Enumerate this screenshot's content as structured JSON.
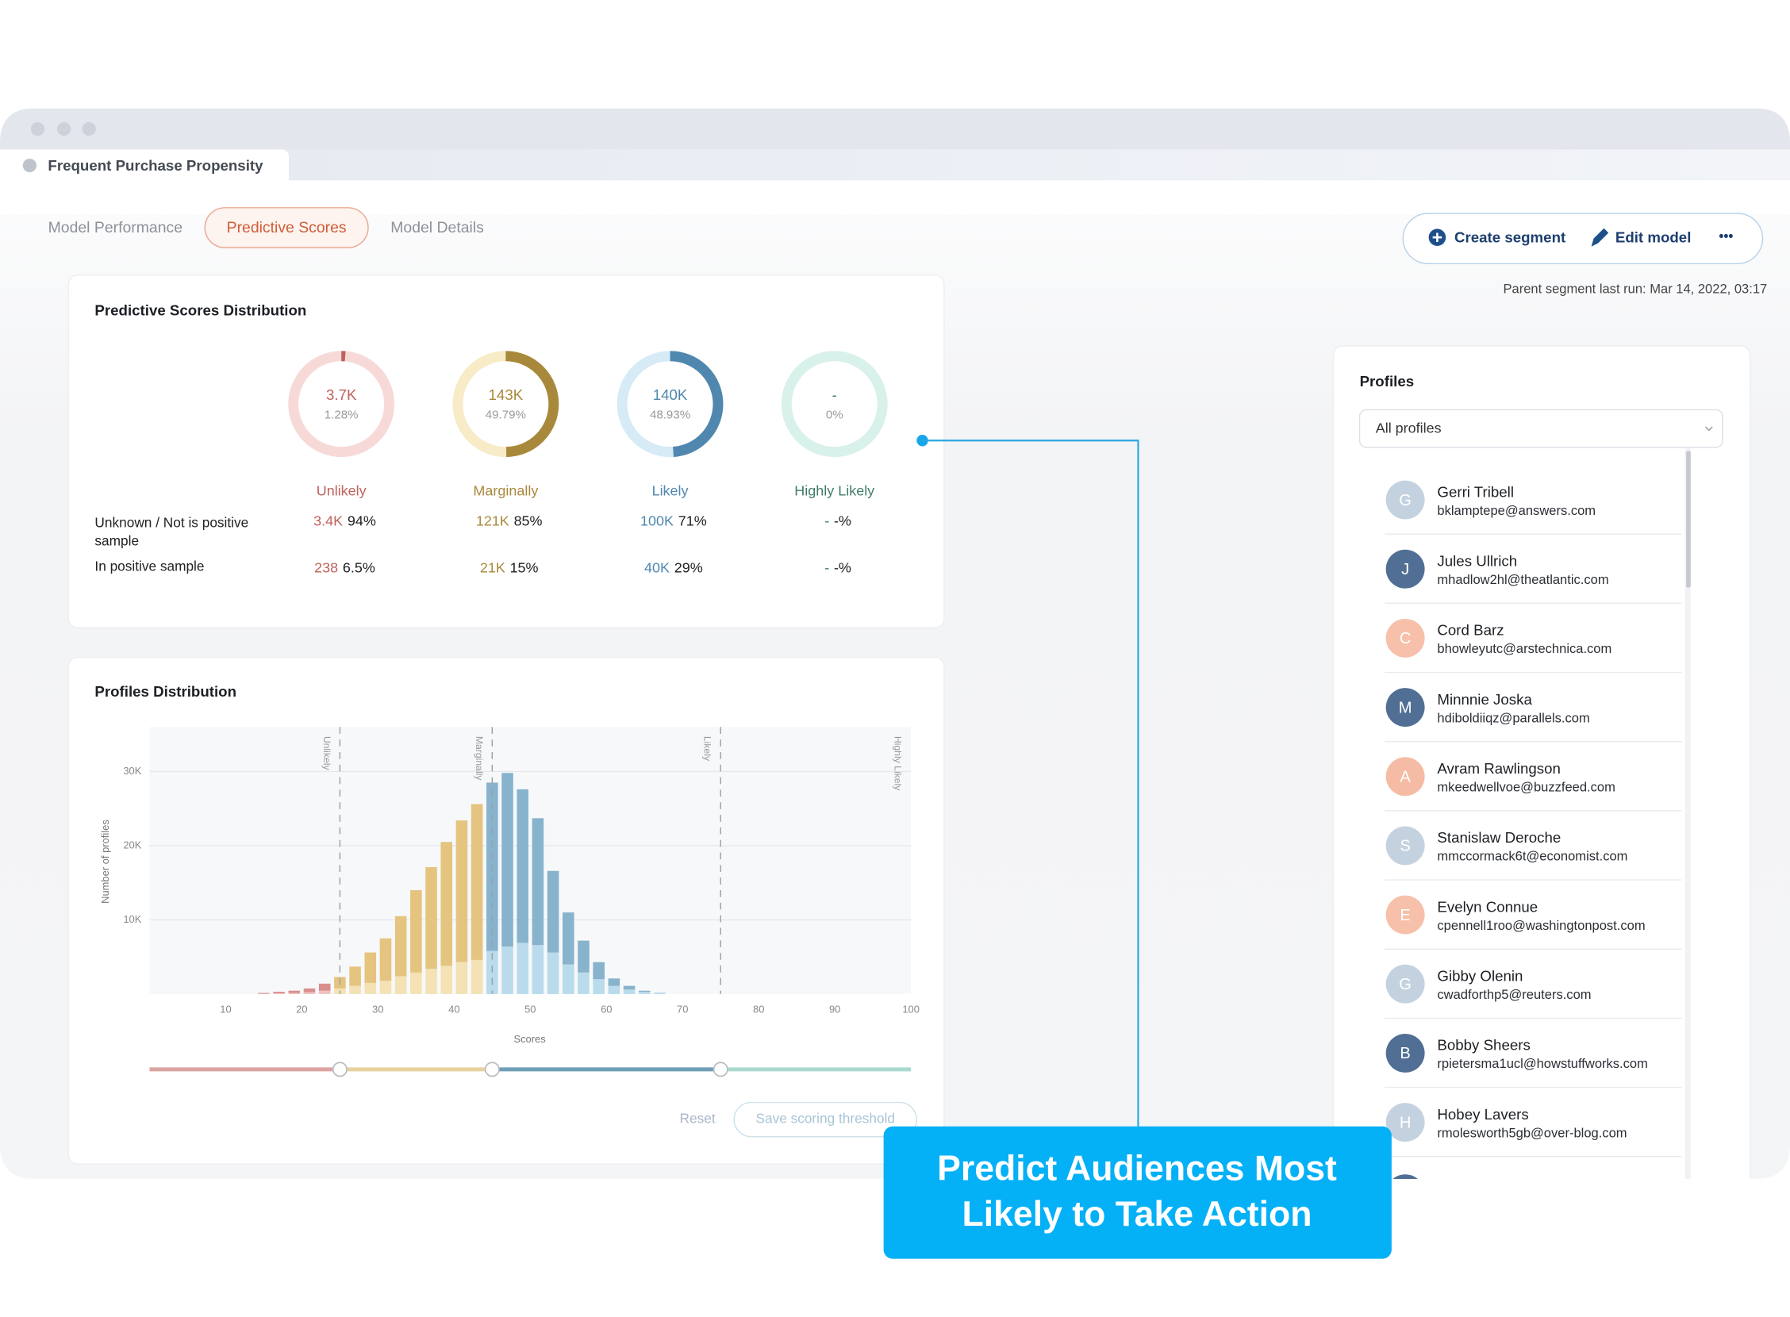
{
  "window": {
    "tab_title": "Frequent Purchase Propensity"
  },
  "tabs": {
    "items": [
      "Model Performance",
      "Predictive Scores",
      "Model Details"
    ],
    "active": 1
  },
  "actions": {
    "create": "Create segment",
    "edit": "Edit model",
    "more": "•••"
  },
  "last_run": "Parent segment last run: Mar 14, 2022, 03:17",
  "scores_distribution": {
    "title": "Predictive Scores Distribution",
    "row_labels": [
      "Unknown / Not is positive sample",
      "In positive sample"
    ],
    "groups": [
      {
        "name": "Unlikely",
        "total": "3.7K",
        "share": 1.28,
        "share_label": "1.28%",
        "unknown": "3.4K",
        "unknown_pct": "94%",
        "positive": "238",
        "positive_pct": "6.5%",
        "color": "#c0615c",
        "track_color": "#f7dad8"
      },
      {
        "name": "Marginally",
        "total": "143K",
        "share": 49.79,
        "share_label": "49.79%",
        "unknown": "121K",
        "unknown_pct": "85%",
        "positive": "21K",
        "positive_pct": "15%",
        "color": "#a8893c",
        "track_color": "#f7ebc8"
      },
      {
        "name": "Likely",
        "total": "140K",
        "share": 48.93,
        "share_label": "48.93%",
        "unknown": "100K",
        "unknown_pct": "71%",
        "positive": "40K",
        "positive_pct": "29%",
        "color": "#4f87ae",
        "track_color": "#d6ebf6"
      },
      {
        "name": "Highly Likely",
        "total": "-",
        "share": 0,
        "share_label": "0%",
        "unknown": "-",
        "unknown_pct": "-%",
        "positive": "-",
        "positive_pct": "-%",
        "color": "#3f7d66",
        "track_color": "#d8f1eb"
      }
    ]
  },
  "chart_data": {
    "type": "histogram",
    "title": "Profiles Distribution",
    "x_label": "Scores",
    "y_label": "Number of profiles",
    "bins": [
      14,
      16,
      18,
      20,
      22,
      24,
      26,
      28,
      30,
      32,
      34,
      36,
      38,
      40,
      42,
      44,
      46,
      48,
      50,
      52,
      54,
      56,
      58,
      60,
      62,
      64,
      66,
      68
    ],
    "series": [
      {
        "colors": [
          "#efc2bf",
          "#f4e2b4",
          "#b9dbec",
          "#c6e9e0"
        ],
        "values": [
          50,
          100,
          150,
          250,
          450,
          750,
          1100,
          1500,
          1800,
          2400,
          2900,
          3400,
          3800,
          4300,
          4600,
          5800,
          6400,
          6900,
          6600,
          5600,
          4000,
          2900,
          2000,
          1100,
          600,
          300,
          100
        ]
      },
      {
        "colors": [
          "#d98f8d",
          "#e4c47f",
          "#88b3cd",
          "#9fd6c8"
        ],
        "values": [
          100,
          200,
          300,
          500,
          950,
          1550,
          2600,
          4100,
          5700,
          8100,
          11100,
          13700,
          16700,
          19100,
          21000,
          22700,
          23400,
          20700,
          17100,
          11000,
          7000,
          4300,
          2300,
          1000,
          500,
          150,
          50
        ]
      }
    ],
    "xlim": [
      0,
      100
    ],
    "xticks": [
      10,
      20,
      30,
      40,
      50,
      60,
      70,
      80,
      90,
      100
    ],
    "ylim": [
      0,
      36000
    ],
    "yticks": [
      {
        "value": 10000,
        "label": "10K"
      },
      {
        "value": 20000,
        "label": "20K"
      },
      {
        "value": 30000,
        "label": "30K"
      }
    ],
    "grid": true,
    "thresholds": [
      25,
      45,
      75
    ],
    "category_labels": [
      "Unlikely",
      "Marginally",
      "Likely",
      "Highly Likely"
    ],
    "slider_colors": [
      "#dba4a1",
      "#e7d39e",
      "#6f9fb7",
      "#a9d9cd"
    ],
    "buttons": [
      "Reset",
      "Save scoring threshold"
    ]
  },
  "profiles": {
    "title": "Profiles",
    "filter": "All profiles",
    "items": [
      {
        "name": "Gerri Tribell",
        "email": "bklamptepe@answers.com",
        "initial": "G",
        "avatar_color": "#c4d2e0"
      },
      {
        "name": "Jules Ullrich",
        "email": "mhadlow2hl@theatlantic.com",
        "initial": "J",
        "avatar_color": "#516f94"
      },
      {
        "name": "Cord Barz",
        "email": "bhowleyutc@arstechnica.com",
        "initial": "C",
        "avatar_color": "#f6c0aa"
      },
      {
        "name": "Minnnie Joska",
        "email": "hdiboldiiqz@parallels.com",
        "initial": "M",
        "avatar_color": "#516f94"
      },
      {
        "name": "Avram Rawlingson",
        "email": "mkeedwellvoe@buzzfeed.com",
        "initial": "A",
        "avatar_color": "#f6bba4"
      },
      {
        "name": "Stanislaw Deroche",
        "email": "mmccormack6t@economist.com",
        "initial": "S",
        "avatar_color": "#c4d2e0"
      },
      {
        "name": "Evelyn Connue",
        "email": "cpennell1roo@washingtonpost.com",
        "initial": "E",
        "avatar_color": "#f6c0aa"
      },
      {
        "name": "Gibby Olenin",
        "email": "cwadforthp5@reuters.com",
        "initial": "G",
        "avatar_color": "#c4d2e0"
      },
      {
        "name": "Bobby Sheers",
        "email": "rpietersma1ucl@howstuffworks.com",
        "initial": "B",
        "avatar_color": "#516f94"
      },
      {
        "name": "Hobey Lavers",
        "email": "rmolesworth5gb@over-blog.com",
        "initial": "H",
        "avatar_color": "#c4d2e0"
      }
    ]
  },
  "callout": {
    "lines": [
      "Predict Audiences Most",
      "Likely to Take Action"
    ]
  }
}
